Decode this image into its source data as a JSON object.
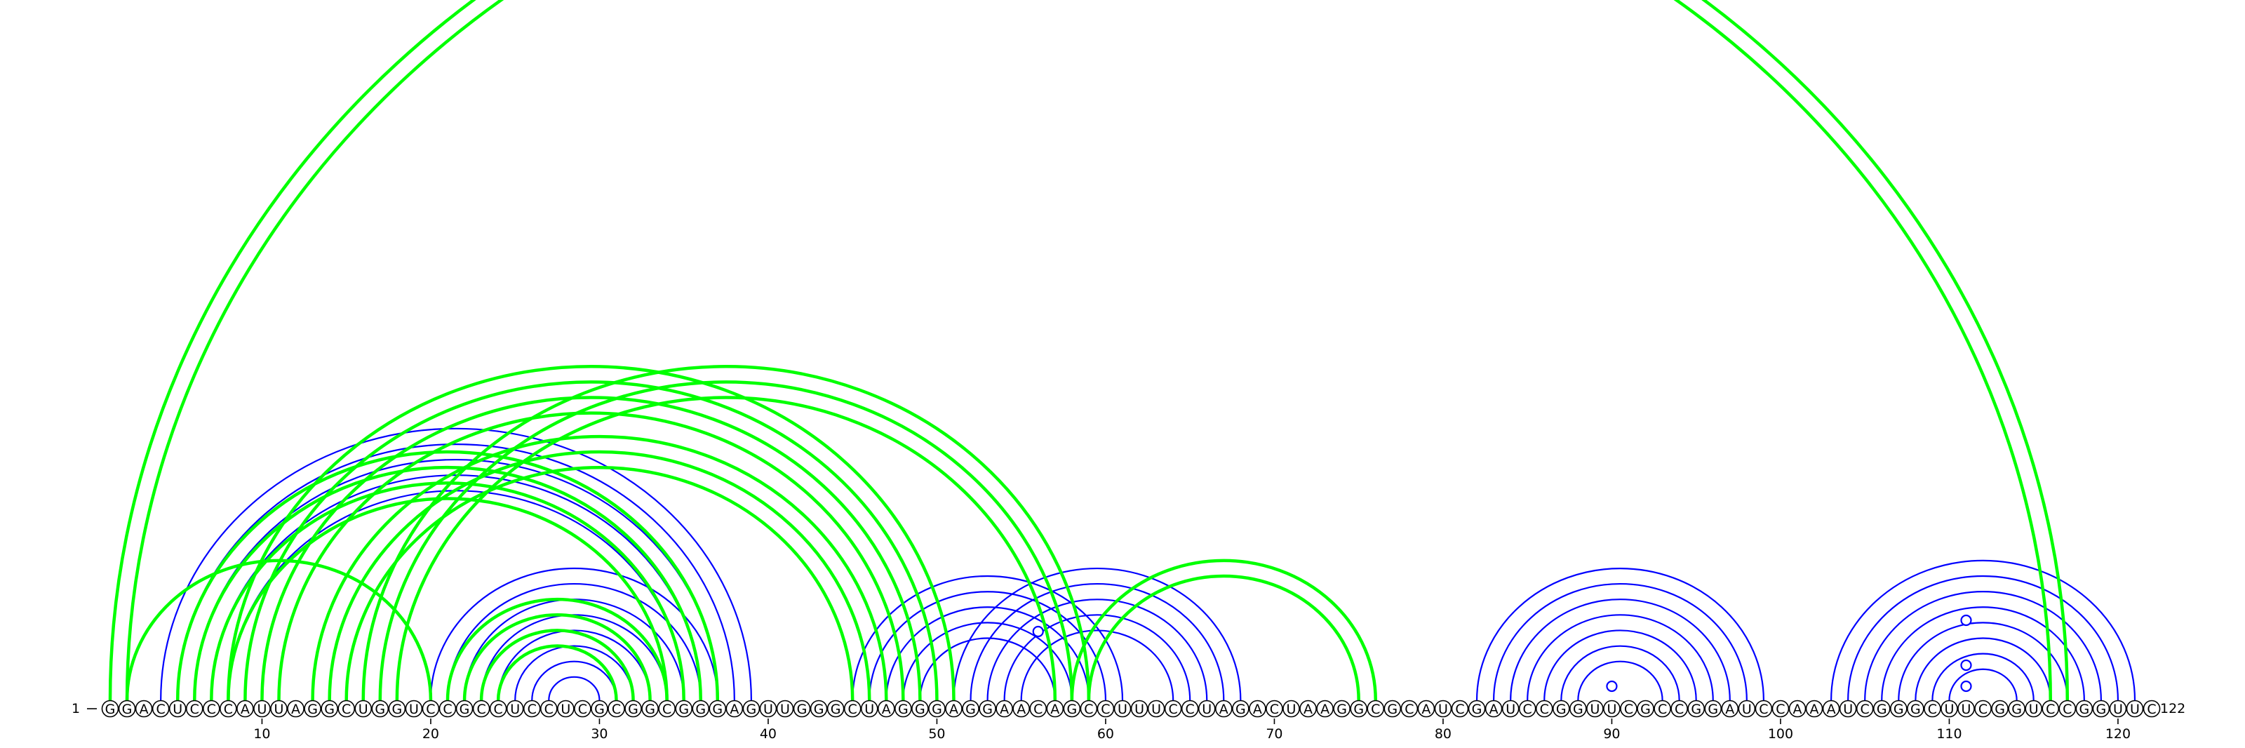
{
  "diagram": {
    "sequence": "GGACUCCCAUUAGGCUGGUCCGCCUCCUCGCGGCGGGAGUUGGGCUAGGGAGGAACAGCCUUUCCUAGACUAAGGCGCAUCGAUCCGGUUCGCCGGAUCCAAAUCGGGCUUCGGUCCGGUUC",
    "start_label": "1",
    "end_label": "122",
    "ticks": [
      10,
      20,
      30,
      40,
      50,
      60,
      70,
      80,
      90,
      100,
      110,
      120
    ],
    "colors": {
      "reference": "#0000ff",
      "predicted": "#00ff00",
      "text": "#000000"
    },
    "reference_pairs": [
      [
        4,
        39
      ],
      [
        5,
        38
      ],
      [
        6,
        37
      ],
      [
        7,
        36
      ],
      [
        8,
        35
      ],
      [
        20,
        37
      ],
      [
        21,
        36
      ],
      [
        22,
        35
      ],
      [
        23,
        34
      ],
      [
        24,
        33
      ],
      [
        25,
        32
      ],
      [
        26,
        31
      ],
      [
        27,
        30
      ],
      [
        45,
        61
      ],
      [
        46,
        60
      ],
      [
        47,
        59
      ],
      [
        48,
        58
      ],
      [
        49,
        57
      ],
      [
        51,
        68
      ],
      [
        52,
        67
      ],
      [
        53,
        66
      ],
      [
        54,
        65
      ],
      [
        55,
        64
      ],
      [
        82,
        99
      ],
      [
        83,
        98
      ],
      [
        84,
        97
      ],
      [
        85,
        96
      ],
      [
        86,
        95
      ],
      [
        87,
        94
      ],
      [
        88,
        93
      ],
      [
        103,
        121
      ],
      [
        104,
        120
      ],
      [
        105,
        119
      ],
      [
        106,
        118
      ],
      [
        107,
        117
      ],
      [
        108,
        116
      ],
      [
        109,
        115
      ],
      [
        110,
        114
      ]
    ],
    "predicted_pairs": [
      [
        1,
        117
      ],
      [
        2,
        116
      ],
      [
        2,
        20
      ],
      [
        5,
        37
      ],
      [
        6,
        36
      ],
      [
        7,
        35
      ],
      [
        8,
        34
      ],
      [
        13,
        47
      ],
      [
        14,
        46
      ],
      [
        15,
        45
      ],
      [
        16,
        59
      ],
      [
        17,
        58
      ],
      [
        18,
        57
      ],
      [
        21,
        34
      ],
      [
        22,
        33
      ],
      [
        23,
        32
      ],
      [
        24,
        31
      ],
      [
        8,
        51
      ],
      [
        9,
        50
      ],
      [
        10,
        49
      ],
      [
        11,
        48
      ],
      [
        58,
        76
      ],
      [
        59,
        75
      ]
    ],
    "markers": [
      56,
      90,
      111,
      111,
      111
    ]
  }
}
